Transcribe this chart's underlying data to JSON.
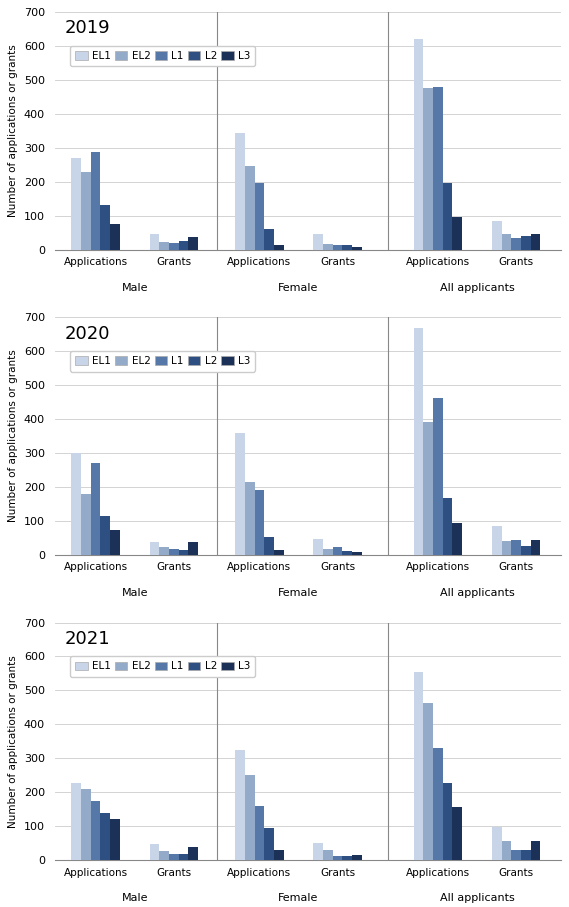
{
  "years": [
    "2019",
    "2020",
    "2021"
  ],
  "categories": [
    "EL1",
    "EL2",
    "L1",
    "L2",
    "L3"
  ],
  "colors": [
    "#c8d4e8",
    "#93aac8",
    "#5578a8",
    "#2d4f82",
    "#1c3158"
  ],
  "ylabel": "Number of applications or grants",
  "ylim": [
    0,
    700
  ],
  "yticks": [
    0,
    100,
    200,
    300,
    400,
    500,
    600,
    700
  ],
  "data": {
    "2019": {
      "male_app": [
        270,
        228,
        287,
        133,
        77
      ],
      "male_grant": [
        47,
        22,
        20,
        27,
        38
      ],
      "female_app": [
        345,
        247,
        196,
        62,
        15
      ],
      "female_grant": [
        47,
        18,
        15,
        13,
        7
      ],
      "all_app": [
        620,
        477,
        480,
        197,
        95
      ],
      "all_grant": [
        85,
        45,
        35,
        40,
        45
      ]
    },
    "2020": {
      "male_app": [
        300,
        178,
        270,
        115,
        74
      ],
      "male_grant": [
        38,
        22,
        18,
        15,
        38
      ],
      "female_app": [
        360,
        215,
        190,
        52,
        14
      ],
      "female_grant": [
        47,
        18,
        22,
        12,
        8
      ],
      "all_app": [
        670,
        393,
        462,
        168,
        93
      ],
      "all_grant": [
        84,
        40,
        43,
        27,
        43
      ]
    },
    "2021": {
      "male_app": [
        228,
        210,
        175,
        137,
        120
      ],
      "male_grant": [
        48,
        25,
        18,
        16,
        37
      ],
      "female_app": [
        323,
        250,
        158,
        93,
        30
      ],
      "female_grant": [
        50,
        28,
        12,
        13,
        15
      ],
      "all_app": [
        553,
        462,
        330,
        228,
        155
      ],
      "all_grant": [
        97,
        55,
        30,
        30,
        55
      ]
    }
  },
  "section_labels": [
    "Male",
    "Female",
    "All applicants"
  ],
  "bar_width": 0.13,
  "group_positions": [
    0.4,
    1.45,
    2.6,
    3.65,
    5.0,
    6.05
  ],
  "legend_labels": [
    "EL1",
    "EL2",
    "L1",
    "L2",
    "L3"
  ]
}
